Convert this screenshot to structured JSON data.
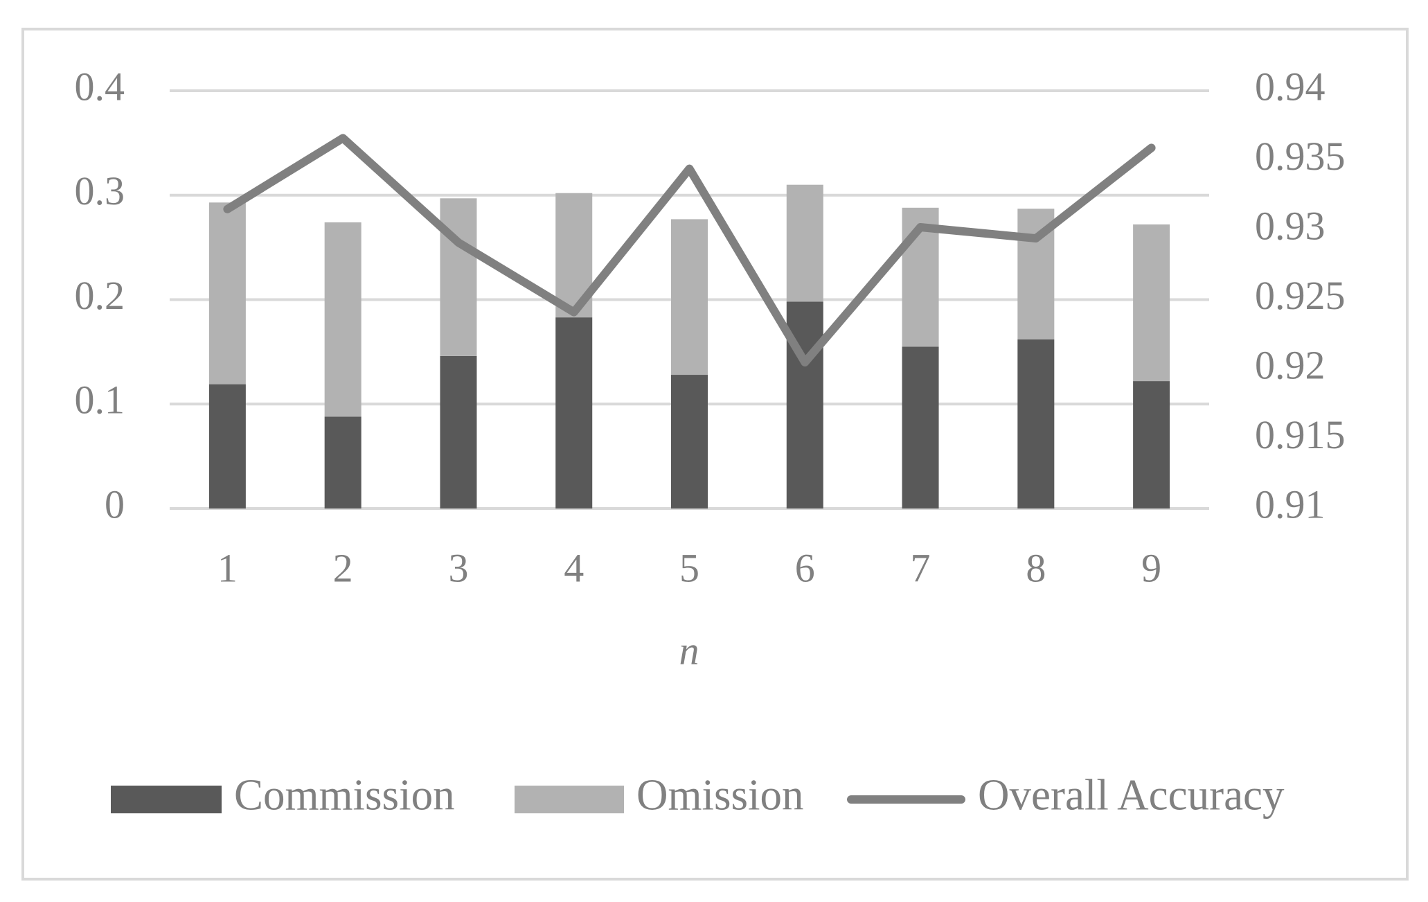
{
  "chart_data": {
    "type": "bar",
    "x_label": "n",
    "categories": [
      "1",
      "2",
      "3",
      "4",
      "5",
      "6",
      "7",
      "8",
      "9"
    ],
    "series": [
      {
        "name": "Commission",
        "color": "#595959",
        "type": "bar",
        "values": [
          0.119,
          0.088,
          0.146,
          0.183,
          0.128,
          0.198,
          0.155,
          0.162,
          0.122
        ]
      },
      {
        "name": "Omission",
        "color": "#b2b2b2",
        "type": "bar",
        "values": [
          0.174,
          0.186,
          0.151,
          0.119,
          0.149,
          0.112,
          0.133,
          0.125,
          0.15
        ]
      },
      {
        "name": "Overall Accuracy",
        "color": "#808080",
        "type": "line",
        "axis": "y2",
        "values": [
          0.9315,
          0.9366,
          0.9291,
          0.9241,
          0.9344,
          0.9205,
          0.9302,
          0.9294,
          0.9359
        ]
      }
    ],
    "stacked": true,
    "ylim": [
      0,
      0.4
    ],
    "yticks": [
      0,
      0.1,
      0.2,
      0.3,
      0.4
    ],
    "y2lim": [
      0.91,
      0.94
    ],
    "y2ticks": [
      0.91,
      0.915,
      0.92,
      0.925,
      0.93,
      0.935,
      0.94
    ],
    "grid": true,
    "legend": "bottom"
  }
}
